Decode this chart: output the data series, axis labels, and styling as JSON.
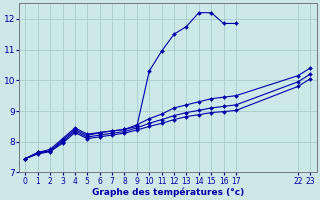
{
  "bg_color": "#cce8e8",
  "grid_color": "#aacccc",
  "line_color": "#0000aa",
  "title": "Graphe des températures (°c)",
  "xlim": [
    -0.5,
    23.5
  ],
  "ylim": [
    7.0,
    12.5
  ],
  "yticks": [
    7,
    8,
    9,
    10,
    11,
    12
  ],
  "xticks": [
    0,
    1,
    2,
    3,
    4,
    5,
    6,
    7,
    8,
    9,
    10,
    11,
    12,
    13,
    14,
    15,
    16,
    17,
    22,
    23
  ],
  "series": [
    {
      "x": [
        0,
        1,
        2,
        3,
        4,
        5,
        6,
        7,
        8,
        9,
        10,
        11,
        12,
        13,
        14,
        15,
        16,
        17
      ],
      "y": [
        7.45,
        7.65,
        7.75,
        8.1,
        8.45,
        8.25,
        8.3,
        8.35,
        8.4,
        8.5,
        10.3,
        10.95,
        11.5,
        11.75,
        12.2,
        12.2,
        11.85,
        11.85
      ]
    },
    {
      "x": [
        0,
        1,
        2,
        3,
        4,
        5,
        6,
        7,
        8,
        9,
        10,
        11,
        12,
        13,
        14,
        15,
        16,
        17,
        22,
        23
      ],
      "y": [
        7.45,
        7.65,
        7.7,
        8.05,
        8.4,
        8.2,
        8.3,
        8.35,
        8.4,
        8.55,
        8.75,
        8.9,
        9.1,
        9.2,
        9.3,
        9.4,
        9.45,
        9.5,
        10.15,
        10.4
      ]
    },
    {
      "x": [
        0,
        1,
        2,
        3,
        4,
        5,
        6,
        7,
        8,
        9,
        10,
        11,
        12,
        13,
        14,
        15,
        16,
        17,
        22,
        23
      ],
      "y": [
        7.45,
        7.62,
        7.7,
        8.0,
        8.35,
        8.15,
        8.22,
        8.28,
        8.33,
        8.45,
        8.6,
        8.72,
        8.85,
        8.95,
        9.02,
        9.1,
        9.15,
        9.2,
        9.95,
        10.2
      ]
    },
    {
      "x": [
        0,
        1,
        2,
        3,
        4,
        5,
        6,
        7,
        8,
        9,
        10,
        11,
        12,
        13,
        14,
        15,
        16,
        17,
        22,
        23
      ],
      "y": [
        7.45,
        7.6,
        7.68,
        7.95,
        8.3,
        8.1,
        8.16,
        8.22,
        8.28,
        8.38,
        8.5,
        8.6,
        8.72,
        8.82,
        8.88,
        8.95,
        8.98,
        9.02,
        9.8,
        10.05
      ]
    }
  ]
}
